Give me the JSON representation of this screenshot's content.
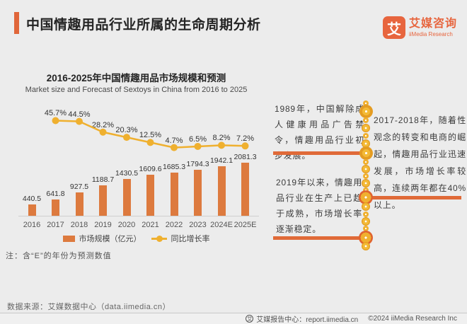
{
  "header": {
    "title": "中国情趣用品行业所属的生命周期分析",
    "logo": {
      "icon_glyph": "艾",
      "name_cn": "艾媒咨询",
      "name_en": "iiMedia Research"
    }
  },
  "chart": {
    "title": "2016-2025年中国情趣用品市场规模和预测",
    "subtitle": "Market size and Forecast of Sextoys in China from 2016 to 2025",
    "legend": {
      "bar_label": "市场规模（亿元）",
      "line_label": "同比增长率"
    },
    "note": "注：含“E”的年份为预测数值"
  },
  "chart_data": {
    "type": "bar",
    "title": "2016-2025年中国情趣用品市场规模和预测",
    "categories": [
      "2016",
      "2017",
      "2018",
      "2019",
      "2020",
      "2021",
      "2022",
      "2023",
      "2024E",
      "2025E"
    ],
    "series": [
      {
        "name": "市场规模（亿元）",
        "type": "bar",
        "values": [
          440.5,
          641.8,
          927.5,
          1188.7,
          1430.5,
          1609.6,
          1685.3,
          1794.3,
          1942.1,
          2081.3
        ]
      },
      {
        "name": "同比增长率",
        "type": "line",
        "unit": "%",
        "values": [
          null,
          45.7,
          44.5,
          28.2,
          20.3,
          12.5,
          4.7,
          6.5,
          8.2,
          7.2
        ]
      }
    ],
    "legend_position": "bottom",
    "grid": false,
    "ylim": [
      0,
      2200
    ]
  },
  "timeline": {
    "events": [
      {
        "side": "left",
        "text": "1989年，中国解除成人健康用品广告禁令，情趣用品行业初步发展。"
      },
      {
        "side": "right",
        "text": "2017-2018年，随着性观念的转变和电商的崛起，情趣用品行业迅速发展，市场增长率较高，连续两年都在40%以上。"
      },
      {
        "side": "left",
        "text": "2019年以来，情趣用品行业在生产上已趋于成熟，市场增长率逐渐稳定。"
      }
    ]
  },
  "footer": {
    "source": "数据来源：艾媒数据中心（data.iimedia.cn）",
    "report_center": "艾媒报告中心：report.iimedia.cn",
    "copyright": "©2024  iiMedia Research Inc"
  },
  "colors": {
    "background": "#ececec",
    "bar": "#dd7a3e",
    "line": "#efb02f",
    "accent": "#e06a38",
    "logo": "#e7653e"
  }
}
